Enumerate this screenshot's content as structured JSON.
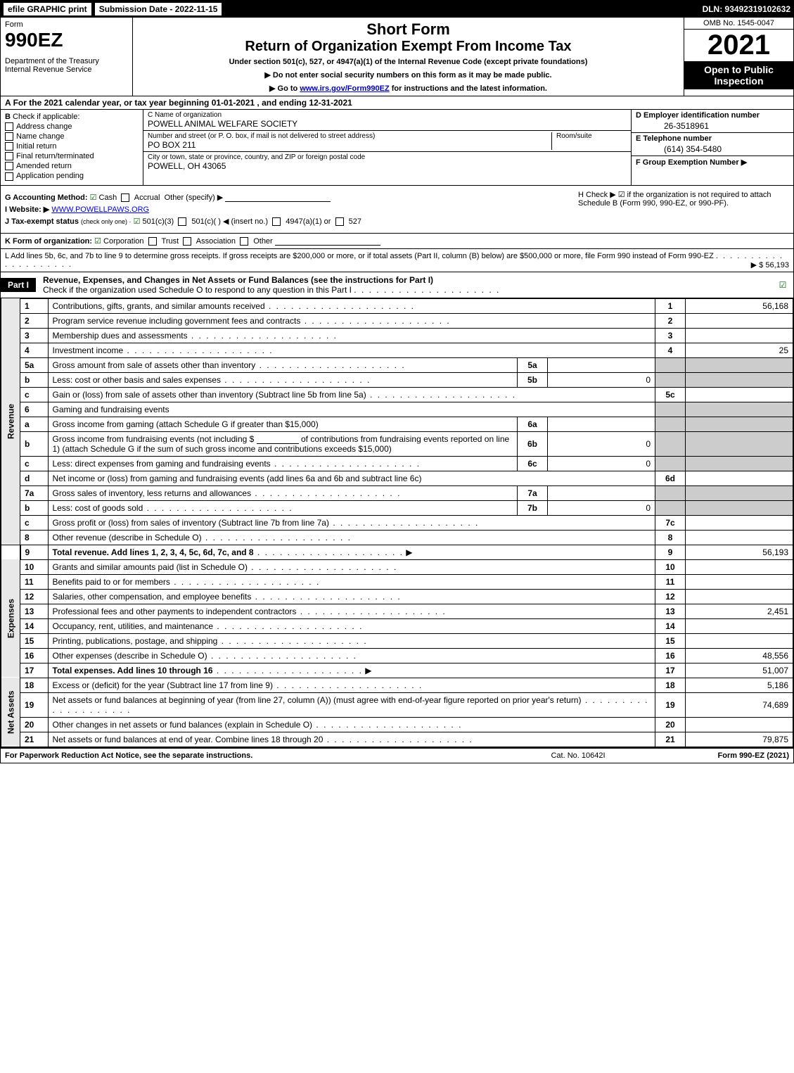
{
  "colors": {
    "black": "#000000",
    "white": "#ffffff",
    "shaded": "#cccccc",
    "side_label_bg": "#e8e8e8",
    "link": "#0000cc",
    "check_green": "#006400"
  },
  "top_bar": {
    "efile": "efile GRAPHIC print",
    "submission_date": "Submission Date - 2022-11-15",
    "dln": "DLN: 93492319102632"
  },
  "header": {
    "form_word": "Form",
    "form_number": "990EZ",
    "dept": "Department of the Treasury",
    "irs": "Internal Revenue Service",
    "short_form": "Short Form",
    "return_title": "Return of Organization Exempt From Income Tax",
    "under_section": "Under section 501(c), 527, or 4947(a)(1) of the Internal Revenue Code (except private foundations)",
    "no_ssn": "▶ Do not enter social security numbers on this form as it may be made public.",
    "goto_prefix": "▶ Go to ",
    "goto_link": "www.irs.gov/Form990EZ",
    "goto_suffix": " for instructions and the latest information.",
    "omb": "OMB No. 1545-0047",
    "year": "2021",
    "open_to": "Open to Public Inspection"
  },
  "row_a": {
    "label": "A",
    "text": "For the 2021 calendar year, or tax year beginning 01-01-2021 , and ending 12-31-2021"
  },
  "section_b": {
    "label": "B",
    "title": "Check if applicable:",
    "items": [
      {
        "label": "Address change",
        "checked": false
      },
      {
        "label": "Name change",
        "checked": false
      },
      {
        "label": "Initial return",
        "checked": false
      },
      {
        "label": "Final return/terminated",
        "checked": false
      },
      {
        "label": "Amended return",
        "checked": false
      },
      {
        "label": "Application pending",
        "checked": false
      }
    ]
  },
  "section_c": {
    "name_label": "C Name of organization",
    "name": "POWELL ANIMAL WELFARE SOCIETY",
    "street_label": "Number and street (or P. O. box, if mail is not delivered to street address)",
    "street": "PO BOX 211",
    "room_label": "Room/suite",
    "city_label": "City or town, state or province, country, and ZIP or foreign postal code",
    "city": "POWELL, OH  43065"
  },
  "section_d": {
    "ein_label": "D Employer identification number",
    "ein": "26-3518961",
    "phone_label": "E Telephone number",
    "phone": "(614) 354-5480",
    "group_label": "F Group Exemption Number ▶",
    "group": ""
  },
  "section_g": {
    "label": "G Accounting Method:",
    "cash": "Cash",
    "accrual": "Accrual",
    "other": "Other (specify) ▶"
  },
  "section_h": {
    "text": "H  Check ▶ ☑ if the organization is not required to attach Schedule B (Form 990, 990-EZ, or 990-PF)."
  },
  "section_i": {
    "label": "I Website: ▶",
    "value": "WWW.POWELLPAWS.ORG"
  },
  "section_j": {
    "label": "J Tax-exempt status",
    "small": "(check only one) ·",
    "opt1": "501(c)(3)",
    "opt2": "501(c)(  ) ◀ (insert no.)",
    "opt3": "4947(a)(1) or",
    "opt4": "527"
  },
  "section_k": {
    "label": "K Form of organization:",
    "corp": "Corporation",
    "trust": "Trust",
    "assoc": "Association",
    "other": "Other"
  },
  "section_l": {
    "text": "L Add lines 5b, 6c, and 7b to line 9 to determine gross receipts. If gross receipts are $200,000 or more, or if total assets (Part II, column (B) below) are $500,000 or more, file Form 990 instead of Form 990-EZ",
    "amount": "▶ $ 56,193"
  },
  "part1": {
    "label": "Part I",
    "title": "Revenue, Expenses, and Changes in Net Assets or Fund Balances (see the instructions for Part I)",
    "check_text": "Check if the organization used Schedule O to respond to any question in this Part I"
  },
  "side_labels": {
    "revenue": "Revenue",
    "expenses": "Expenses",
    "net_assets": "Net Assets"
  },
  "lines": {
    "l1": {
      "no": "1",
      "desc": "Contributions, gifts, grants, and similar amounts received",
      "col": "1",
      "val": "56,168"
    },
    "l2": {
      "no": "2",
      "desc": "Program service revenue including government fees and contracts",
      "col": "2",
      "val": ""
    },
    "l3": {
      "no": "3",
      "desc": "Membership dues and assessments",
      "col": "3",
      "val": ""
    },
    "l4": {
      "no": "4",
      "desc": "Investment income",
      "col": "4",
      "val": "25"
    },
    "l5a": {
      "no": "5a",
      "desc": "Gross amount from sale of assets other than inventory",
      "sub": "5a",
      "subval": ""
    },
    "l5b": {
      "no": "b",
      "desc": "Less: cost or other basis and sales expenses",
      "sub": "5b",
      "subval": "0"
    },
    "l5c": {
      "no": "c",
      "desc": "Gain or (loss) from sale of assets other than inventory (Subtract line 5b from line 5a)",
      "col": "5c",
      "val": ""
    },
    "l6": {
      "no": "6",
      "desc": "Gaming and fundraising events"
    },
    "l6a": {
      "no": "a",
      "desc": "Gross income from gaming (attach Schedule G if greater than $15,000)",
      "sub": "6a",
      "subval": ""
    },
    "l6b": {
      "no": "b",
      "desc1": "Gross income from fundraising events (not including $",
      "desc2": "of contributions from fundraising events reported on line 1) (attach Schedule G if the sum of such gross income and contributions exceeds $15,000)",
      "sub": "6b",
      "subval": "0"
    },
    "l6c": {
      "no": "c",
      "desc": "Less: direct expenses from gaming and fundraising events",
      "sub": "6c",
      "subval": "0"
    },
    "l6d": {
      "no": "d",
      "desc": "Net income or (loss) from gaming and fundraising events (add lines 6a and 6b and subtract line 6c)",
      "col": "6d",
      "val": ""
    },
    "l7a": {
      "no": "7a",
      "desc": "Gross sales of inventory, less returns and allowances",
      "sub": "7a",
      "subval": ""
    },
    "l7b": {
      "no": "b",
      "desc": "Less: cost of goods sold",
      "sub": "7b",
      "subval": "0"
    },
    "l7c": {
      "no": "c",
      "desc": "Gross profit or (loss) from sales of inventory (Subtract line 7b from line 7a)",
      "col": "7c",
      "val": ""
    },
    "l8": {
      "no": "8",
      "desc": "Other revenue (describe in Schedule O)",
      "col": "8",
      "val": ""
    },
    "l9": {
      "no": "9",
      "desc": "Total revenue. Add lines 1, 2, 3, 4, 5c, 6d, 7c, and 8",
      "col": "9",
      "val": "56,193"
    },
    "l10": {
      "no": "10",
      "desc": "Grants and similar amounts paid (list in Schedule O)",
      "col": "10",
      "val": ""
    },
    "l11": {
      "no": "11",
      "desc": "Benefits paid to or for members",
      "col": "11",
      "val": ""
    },
    "l12": {
      "no": "12",
      "desc": "Salaries, other compensation, and employee benefits",
      "col": "12",
      "val": ""
    },
    "l13": {
      "no": "13",
      "desc": "Professional fees and other payments to independent contractors",
      "col": "13",
      "val": "2,451"
    },
    "l14": {
      "no": "14",
      "desc": "Occupancy, rent, utilities, and maintenance",
      "col": "14",
      "val": ""
    },
    "l15": {
      "no": "15",
      "desc": "Printing, publications, postage, and shipping",
      "col": "15",
      "val": ""
    },
    "l16": {
      "no": "16",
      "desc": "Other expenses (describe in Schedule O)",
      "col": "16",
      "val": "48,556"
    },
    "l17": {
      "no": "17",
      "desc": "Total expenses. Add lines 10 through 16",
      "col": "17",
      "val": "51,007"
    },
    "l18": {
      "no": "18",
      "desc": "Excess or (deficit) for the year (Subtract line 17 from line 9)",
      "col": "18",
      "val": "5,186"
    },
    "l19": {
      "no": "19",
      "desc": "Net assets or fund balances at beginning of year (from line 27, column (A)) (must agree with end-of-year figure reported on prior year's return)",
      "col": "19",
      "val": "74,689"
    },
    "l20": {
      "no": "20",
      "desc": "Other changes in net assets or fund balances (explain in Schedule O)",
      "col": "20",
      "val": ""
    },
    "l21": {
      "no": "21",
      "desc": "Net assets or fund balances at end of year. Combine lines 18 through 20",
      "col": "21",
      "val": "79,875"
    }
  },
  "footer": {
    "left": "For Paperwork Reduction Act Notice, see the separate instructions.",
    "mid": "Cat. No. 10642I",
    "right": "Form 990-EZ (2021)"
  }
}
